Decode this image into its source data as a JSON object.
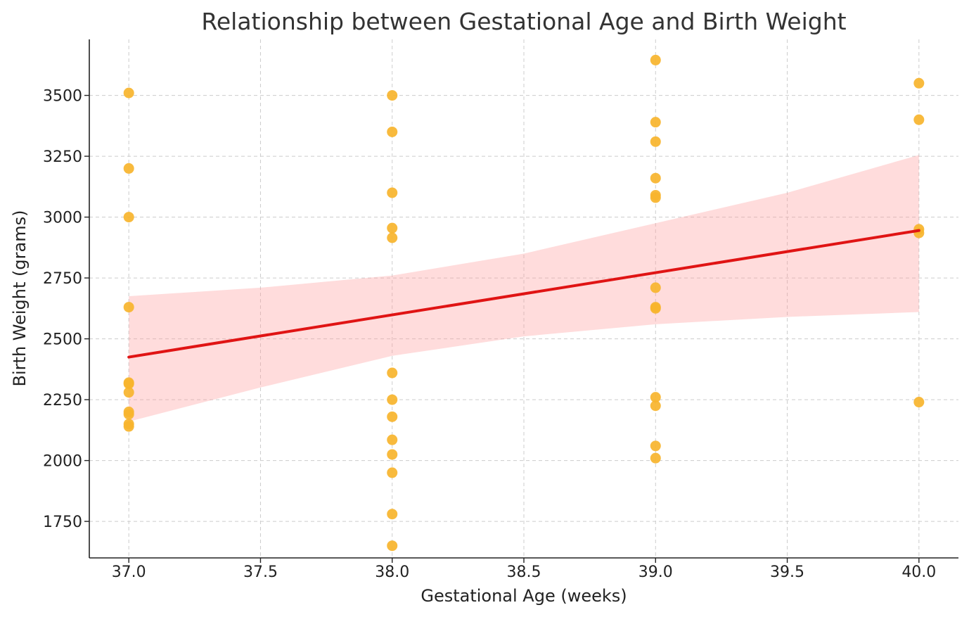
{
  "chart_data": {
    "type": "scatter",
    "title": "Relationship between Gestational Age and Birth Weight",
    "xlabel": "Gestational Age (weeks)",
    "ylabel": "Birth Weight (grams)",
    "xlim": [
      36.85,
      40.15
    ],
    "ylim": [
      1600,
      3730
    ],
    "xticks": [
      37.0,
      37.5,
      38.0,
      38.5,
      39.0,
      39.5,
      40.0
    ],
    "xtick_labels": [
      "37.0",
      "37.5",
      "38.0",
      "38.5",
      "39.0",
      "39.5",
      "40.0"
    ],
    "yticks": [
      1750,
      2000,
      2250,
      2500,
      2750,
      3000,
      3250,
      3500
    ],
    "ytick_labels": [
      "1750",
      "2000",
      "2250",
      "2500",
      "2750",
      "3000",
      "3250",
      "3500"
    ],
    "grid": true,
    "points": [
      {
        "x": 37,
        "y": 3510
      },
      {
        "x": 37,
        "y": 3200
      },
      {
        "x": 37,
        "y": 3000
      },
      {
        "x": 37,
        "y": 2630
      },
      {
        "x": 37,
        "y": 2320
      },
      {
        "x": 37,
        "y": 2315
      },
      {
        "x": 37,
        "y": 2280
      },
      {
        "x": 37,
        "y": 2200
      },
      {
        "x": 37,
        "y": 2190
      },
      {
        "x": 37,
        "y": 2150
      },
      {
        "x": 37,
        "y": 2140
      },
      {
        "x": 38,
        "y": 3500
      },
      {
        "x": 38,
        "y": 3350
      },
      {
        "x": 38,
        "y": 3100
      },
      {
        "x": 38,
        "y": 2955
      },
      {
        "x": 38,
        "y": 2915
      },
      {
        "x": 38,
        "y": 2360
      },
      {
        "x": 38,
        "y": 2250
      },
      {
        "x": 38,
        "y": 2180
      },
      {
        "x": 38,
        "y": 2085
      },
      {
        "x": 38,
        "y": 2025
      },
      {
        "x": 38,
        "y": 1950
      },
      {
        "x": 38,
        "y": 1780
      },
      {
        "x": 38,
        "y": 1650
      },
      {
        "x": 39,
        "y": 3645
      },
      {
        "x": 39,
        "y": 3390
      },
      {
        "x": 39,
        "y": 3310
      },
      {
        "x": 39,
        "y": 3160
      },
      {
        "x": 39,
        "y": 3090
      },
      {
        "x": 39,
        "y": 3080
      },
      {
        "x": 39,
        "y": 2710
      },
      {
        "x": 39,
        "y": 2630
      },
      {
        "x": 39,
        "y": 2625
      },
      {
        "x": 39,
        "y": 2260
      },
      {
        "x": 39,
        "y": 2225
      },
      {
        "x": 39,
        "y": 2060
      },
      {
        "x": 39,
        "y": 2010
      },
      {
        "x": 40,
        "y": 3550
      },
      {
        "x": 40,
        "y": 3400
      },
      {
        "x": 40,
        "y": 2950
      },
      {
        "x": 40,
        "y": 2935
      },
      {
        "x": 40,
        "y": 2240
      }
    ],
    "regression_line": {
      "x": [
        37.0,
        40.0
      ],
      "y": [
        2425,
        2945
      ]
    },
    "confidence_band": {
      "x": [
        37.0,
        37.5,
        38.0,
        38.5,
        39.0,
        39.5,
        40.0
      ],
      "upper": [
        2675,
        2710,
        2760,
        2850,
        2975,
        3100,
        3255
      ],
      "lower": [
        2160,
        2300,
        2430,
        2510,
        2560,
        2590,
        2610
      ]
    },
    "colors": {
      "points": "#f7b42c",
      "regression_line": "#e01414",
      "confidence_band": "#ff9a9a",
      "grid": "#cccccc"
    }
  }
}
